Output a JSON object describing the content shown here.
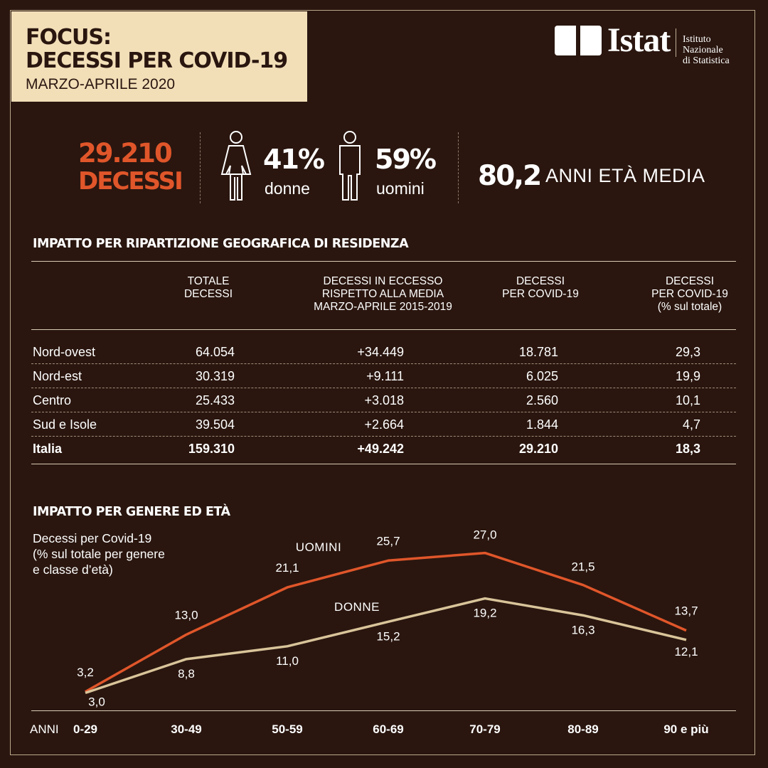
{
  "header": {
    "title_line1": "FOCUS:",
    "title_line2": "DECESSI PER COVID-19",
    "period": "MARZO-APRILE 2020"
  },
  "logo": {
    "name": "Istat",
    "subtitle_line1": "Istituto Nazionale",
    "subtitle_line2": "di Statistica"
  },
  "stats": {
    "deaths_value": "29.210",
    "deaths_label": "DECESSI",
    "women_pct": "41%",
    "women_label": "donne",
    "men_pct": "59%",
    "men_label": "uomini",
    "mean_age_value": "80,2",
    "mean_age_label": "ANNI ETÀ MEDIA",
    "icons": [
      "female-person-icon",
      "male-person-icon"
    ]
  },
  "table": {
    "title": "IMPATTO PER RIPARTIZIONE GEOGRAFICA DI RESIDENZA",
    "columns": [
      [
        "TOTALE",
        "DECESSI"
      ],
      [
        "DECESSI IN ECCESSO",
        "RISPETTO ALLA MEDIA",
        "MARZO-APRILE 2015-2019"
      ],
      [
        "DECESSI",
        "PER COVID-19"
      ],
      [
        "DECESSI",
        "PER COVID-19",
        "(% sul totale)"
      ]
    ],
    "rows": [
      [
        "Nord-ovest",
        "64.054",
        "+34.449",
        "18.781",
        "29,3"
      ],
      [
        "Nord-est",
        "30.319",
        "+9.111",
        "6.025",
        "19,9"
      ],
      [
        "Centro",
        "25.433",
        "+3.018",
        "2.560",
        "10,1"
      ],
      [
        "Sud e Isole",
        "39.504",
        "+2.664",
        "1.844",
        "4,7"
      ],
      [
        "Italia",
        "159.310",
        "+49.242",
        "29.210",
        "18,3"
      ]
    ]
  },
  "chart_section": {
    "title": "IMPATTO PER GENERE ED ETÀ",
    "subtitle_line1": "Decessi per Covid-19",
    "subtitle_line2": "(% sul totale per genere",
    "subtitle_line3": "e classe d’età)",
    "x_axis_label": "ANNI"
  },
  "chart_data": {
    "type": "line",
    "categories": [
      "0-29",
      "30-49",
      "50-59",
      "60-69",
      "70-79",
      "80-89",
      "90 e più"
    ],
    "series": [
      {
        "name": "UOMINI",
        "values": [
          3.2,
          13.0,
          21.1,
          25.7,
          27.0,
          21.5,
          13.7
        ],
        "labels": [
          "3,2",
          "13,0",
          "21,1",
          "25,7",
          "27,0",
          "21,5",
          "13,7"
        ],
        "color": "#e0562a"
      },
      {
        "name": "DONNE",
        "values": [
          3.0,
          8.8,
          11.0,
          15.2,
          19.2,
          16.3,
          12.1
        ],
        "labels": [
          "3,0",
          "8,8",
          "11,0",
          "15,2",
          "19,2",
          "16,3",
          "12,1"
        ],
        "color": "#d9c49a"
      }
    ],
    "ylim": [
      0,
      30
    ],
    "grid": false
  },
  "colors": {
    "background": "#2a160f",
    "accent": "#e0562a",
    "title_box": "#f2dfb8"
  }
}
